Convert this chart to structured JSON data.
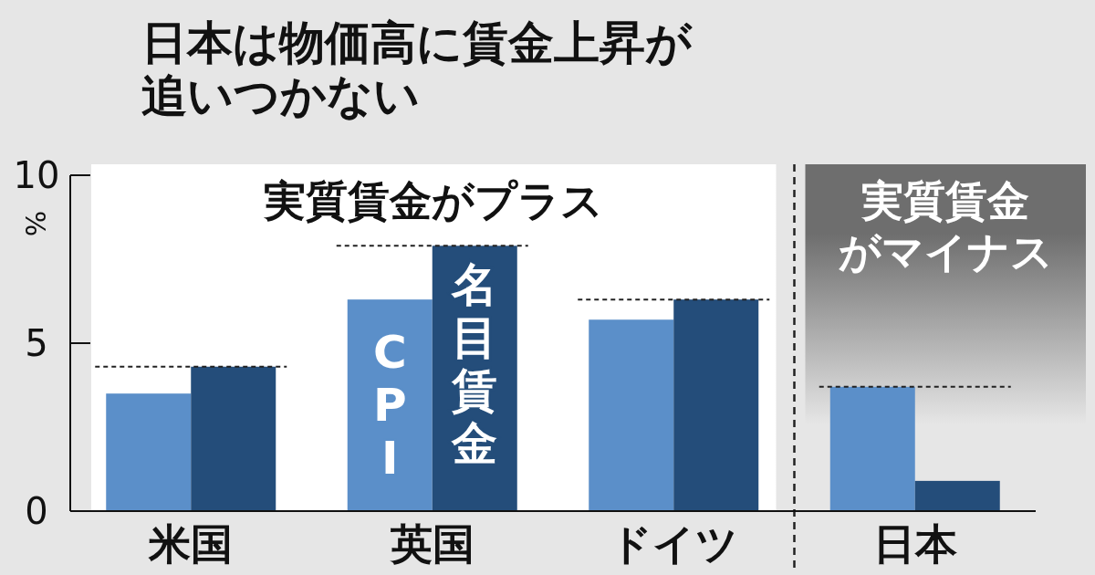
{
  "chart_data": {
    "type": "bar",
    "title": "日本は物価高に賃金上昇が追いつかない",
    "ylabel": "%",
    "categories": [
      "米国",
      "英国",
      "ドイツ",
      "日本"
    ],
    "series": [
      {
        "name": "CPI",
        "color": "#5b8fc9",
        "values": [
          3.5,
          6.3,
          5.7,
          3.7
        ]
      },
      {
        "name": "名目賃金",
        "color": "#244d7a",
        "values": [
          4.3,
          7.9,
          6.3,
          0.9
        ]
      }
    ],
    "ylim": [
      0,
      10
    ],
    "yticks": [
      0,
      5,
      10
    ],
    "ref_lines": [
      {
        "axis": "y",
        "value": 4.3,
        "line_style": "dashed",
        "color": "#222222"
      },
      {
        "axis": "y",
        "value": 7.9,
        "line_style": "dashed",
        "color": "#222222"
      },
      {
        "axis": "y",
        "value": 6.3,
        "line_style": "dashed",
        "color": "#222222"
      },
      {
        "axis": "y",
        "value": 3.7,
        "line_style": "dashed",
        "color": "#222222"
      }
    ],
    "bands": [
      {
        "axis": "x",
        "from": "米国",
        "to": "ドイツ",
        "label": "実質賃金がプラス",
        "color": "#ffffff"
      },
      {
        "axis": "x",
        "from": "日本",
        "to": "日本",
        "label": "実質賃金がマイナス",
        "color": "#6e6e6e"
      }
    ]
  }
}
